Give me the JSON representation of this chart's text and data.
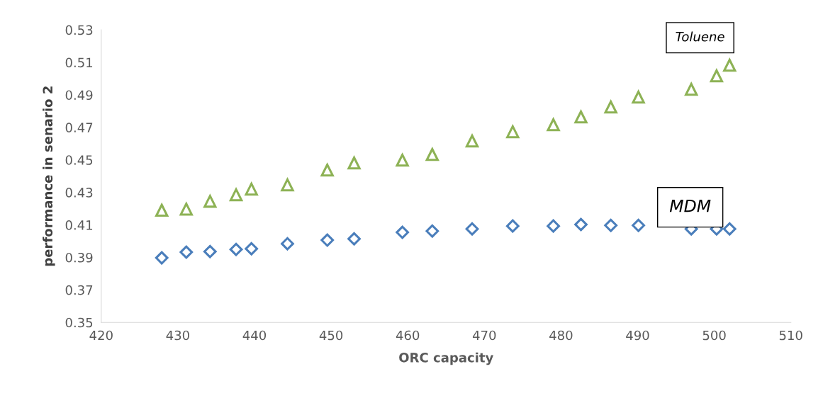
{
  "chart_data": {
    "type": "scatter",
    "xlabel": "ORC capacity",
    "ylabel": "performance in senario 2",
    "x": [
      427.9,
      431.1,
      434.2,
      437.6,
      439.6,
      444.3,
      449.5,
      453.0,
      459.3,
      463.2,
      468.4,
      473.7,
      479.0,
      482.6,
      486.5,
      490.1,
      497.0,
      500.3,
      502.0
    ],
    "series": [
      {
        "name": "Toluene",
        "color": "#8db255",
        "marker": "triangle",
        "values": [
          0.419,
          0.4197,
          0.4245,
          0.4285,
          0.432,
          0.4346,
          0.4437,
          0.4481,
          0.4498,
          0.4533,
          0.4616,
          0.4673,
          0.4716,
          0.4764,
          0.4825,
          0.4886,
          0.4934,
          0.5017,
          0.5082
        ]
      },
      {
        "name": "MDM",
        "color": "#4a7ebb",
        "marker": "diamond",
        "values": [
          0.3897,
          0.3932,
          0.3936,
          0.3949,
          0.3953,
          0.3984,
          0.4006,
          0.4014,
          0.4054,
          0.4062,
          0.4075,
          0.4093,
          0.4093,
          0.4102,
          0.4097,
          0.4097,
          0.4075,
          0.4075,
          0.4075
        ]
      }
    ],
    "xlim": [
      420,
      510
    ],
    "xticks": [
      420,
      430,
      440,
      450,
      460,
      470,
      480,
      490,
      500,
      510
    ],
    "ylim": [
      0.35,
      0.53
    ],
    "yticks": [
      {
        "value": 0.35,
        "label": "0.35"
      },
      {
        "value": 0.37,
        "label": "0.37"
      },
      {
        "value": 0.39,
        "label": "0.39"
      },
      {
        "value": 0.41,
        "label": "0.41"
      },
      {
        "value": 0.43,
        "label": "0.43"
      },
      {
        "value": 0.45,
        "label": "0.45"
      },
      {
        "value": 0.47,
        "label": "0.47"
      },
      {
        "value": 0.49,
        "label": "0.49"
      },
      {
        "value": 0.51,
        "label": "0.51"
      },
      {
        "value": 0.53,
        "label": "0.53"
      }
    ],
    "grid": false,
    "legend": false
  }
}
